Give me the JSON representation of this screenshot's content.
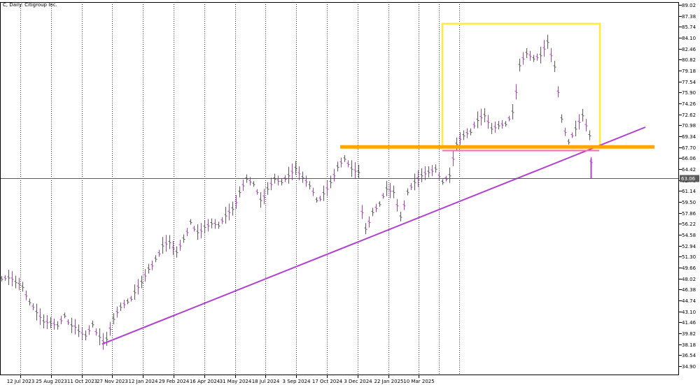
{
  "chart_data": {
    "type": "candlestick",
    "title": "C, Daily: Citigroup Inc.",
    "y_ticks": [
      "89.02",
      "87.38",
      "85.74",
      "84.10",
      "82.46",
      "80.82",
      "79.18",
      "77.54",
      "75.90",
      "74.26",
      "72.62",
      "70.98",
      "69.34",
      "67.70",
      "66.06",
      "64.42",
      "62.78",
      "61.14",
      "59.50",
      "57.86",
      "56.22",
      "54.58",
      "52.94",
      "51.30",
      "49.66",
      "48.02",
      "46.38",
      "44.74",
      "43.10",
      "41.46",
      "39.82",
      "38.18",
      "36.54",
      "34.90"
    ],
    "ylim": [
      34.9,
      89.02
    ],
    "current_price": "63.06",
    "x_ticks": [
      "12 Jul 2023",
      "25 Aug 2023",
      "11 Oct 2023",
      "27 Nov 2023",
      "12 Jan 2024",
      "29 Feb 2024",
      "16 Apr 2024",
      "31 May 2024",
      "18 Jul 2024",
      "3 Sep 2024",
      "17 Oct 2024",
      "3 Dec 2024",
      "22 Jan 2025",
      "10 Mar 2025"
    ],
    "bar_series": [
      {
        "name": "",
        "color": "#5a5a5a",
        "points": [
          [
            2,
            48.0
          ],
          [
            12,
            48.2
          ],
          [
            22,
            47.5
          ],
          [
            32,
            46.8
          ],
          [
            42,
            44.5
          ],
          [
            52,
            43.0
          ],
          [
            62,
            41.6
          ],
          [
            72,
            41.4
          ],
          [
            82,
            41.0
          ],
          [
            92,
            42.5
          ],
          [
            102,
            41.0
          ],
          [
            112,
            40.2
          ],
          [
            122,
            39.5
          ],
          [
            132,
            41.2
          ],
          [
            142,
            39.3
          ],
          [
            152,
            39.0
          ],
          [
            162,
            42.0
          ],
          [
            172,
            43.8
          ],
          [
            182,
            44.6
          ],
          [
            192,
            46.0
          ],
          [
            202,
            47.5
          ],
          [
            212,
            49.5
          ],
          [
            222,
            51.0
          ],
          [
            232,
            53.0
          ],
          [
            242,
            53.5
          ],
          [
            252,
            52.0
          ],
          [
            262,
            54.0
          ],
          [
            272,
            56.5
          ],
          [
            282,
            55.0
          ],
          [
            292,
            55.8
          ],
          [
            302,
            56.3
          ],
          [
            312,
            56.0
          ],
          [
            322,
            57.5
          ],
          [
            332,
            58.5
          ],
          [
            342,
            61.0
          ],
          [
            352,
            63.0
          ],
          [
            362,
            62.2
          ],
          [
            372,
            59.8
          ],
          [
            382,
            61.5
          ],
          [
            392,
            63.0
          ],
          [
            402,
            62.5
          ],
          [
            412,
            63.5
          ],
          [
            422,
            64.6
          ],
          [
            432,
            63.2
          ],
          [
            442,
            62.0
          ],
          [
            452,
            59.8
          ],
          [
            462,
            60.8
          ],
          [
            472,
            62.5
          ],
          [
            482,
            64.8
          ],
          [
            492,
            66.0
          ],
          [
            502,
            64.5
          ],
          [
            512,
            64.0
          ],
          [
            522,
            55.5
          ],
          [
            532,
            58.0
          ],
          [
            542,
            59.2
          ],
          [
            552,
            61.5
          ],
          [
            562,
            61.0
          ],
          [
            572,
            57.3
          ],
          [
            582,
            61.0
          ],
          [
            592,
            62.5
          ],
          [
            602,
            63.5
          ],
          [
            612,
            64.0
          ],
          [
            622,
            64.5
          ],
          [
            632,
            62.5
          ],
          [
            642,
            63.5
          ],
          [
            652,
            68.2
          ],
          [
            662,
            69.5
          ],
          [
            672,
            70.0
          ],
          [
            682,
            71.8
          ],
          [
            692,
            72.5
          ],
          [
            702,
            70.5
          ],
          [
            712,
            71.0
          ],
          [
            722,
            71.2
          ],
          [
            732,
            73.0
          ],
          [
            742,
            80.0
          ],
          [
            752,
            81.8
          ],
          [
            762,
            81.0
          ],
          [
            772,
            81.5
          ],
          [
            782,
            83.5
          ],
          [
            792,
            79.8
          ],
          [
            802,
            72.0
          ],
          [
            812,
            68.5
          ],
          [
            822,
            70.5
          ],
          [
            832,
            72.5
          ],
          [
            842,
            69.5
          ]
        ]
      },
      {
        "name": "",
        "color": "#b040d0",
        "points": [
          [
            7,
            48.1
          ],
          [
            17,
            48.0
          ],
          [
            27,
            47.2
          ],
          [
            37,
            45.5
          ],
          [
            47,
            43.8
          ],
          [
            57,
            42.3
          ],
          [
            67,
            41.5
          ],
          [
            77,
            41.2
          ],
          [
            87,
            41.8
          ],
          [
            97,
            41.5
          ],
          [
            107,
            40.8
          ],
          [
            117,
            39.8
          ],
          [
            127,
            40.3
          ],
          [
            137,
            40.0
          ],
          [
            147,
            38.6
          ],
          [
            157,
            40.5
          ],
          [
            167,
            43.0
          ],
          [
            177,
            44.2
          ],
          [
            187,
            45.0
          ],
          [
            197,
            46.8
          ],
          [
            207,
            48.5
          ],
          [
            217,
            50.0
          ],
          [
            227,
            51.8
          ],
          [
            237,
            53.3
          ],
          [
            247,
            52.6
          ],
          [
            257,
            53.0
          ],
          [
            267,
            55.0
          ],
          [
            277,
            55.5
          ],
          [
            287,
            55.2
          ],
          [
            297,
            56.0
          ],
          [
            307,
            56.2
          ],
          [
            317,
            56.7
          ],
          [
            327,
            58.0
          ],
          [
            337,
            59.5
          ],
          [
            347,
            62.0
          ],
          [
            357,
            62.6
          ],
          [
            367,
            61.0
          ],
          [
            377,
            60.3
          ],
          [
            387,
            62.2
          ],
          [
            397,
            62.7
          ],
          [
            407,
            63.0
          ],
          [
            417,
            64.0
          ],
          [
            427,
            63.8
          ],
          [
            437,
            62.6
          ],
          [
            447,
            61.0
          ],
          [
            457,
            60.0
          ],
          [
            467,
            61.5
          ],
          [
            477,
            63.5
          ],
          [
            487,
            65.4
          ],
          [
            497,
            65.2
          ],
          [
            507,
            64.2
          ],
          [
            517,
            58.0
          ],
          [
            527,
            56.5
          ],
          [
            537,
            58.6
          ],
          [
            547,
            60.4
          ],
          [
            557,
            61.2
          ],
          [
            567,
            59.0
          ],
          [
            577,
            59.0
          ],
          [
            587,
            61.8
          ],
          [
            597,
            63.0
          ],
          [
            607,
            63.8
          ],
          [
            617,
            64.2
          ],
          [
            627,
            63.4
          ],
          [
            637,
            63.0
          ],
          [
            647,
            66.0
          ],
          [
            657,
            69.0
          ],
          [
            667,
            69.8
          ],
          [
            677,
            71.0
          ],
          [
            687,
            72.2
          ],
          [
            697,
            71.5
          ],
          [
            707,
            70.7
          ],
          [
            717,
            71.1
          ],
          [
            727,
            72.0
          ],
          [
            737,
            76.0
          ],
          [
            747,
            81.0
          ],
          [
            757,
            81.4
          ],
          [
            767,
            81.2
          ],
          [
            777,
            82.5
          ],
          [
            787,
            81.5
          ],
          [
            797,
            76.0
          ],
          [
            807,
            70.0
          ],
          [
            817,
            69.5
          ],
          [
            827,
            71.5
          ],
          [
            837,
            71.0
          ],
          [
            844,
            65.5
          ]
        ]
      }
    ],
    "line_series": [
      {
        "name": "",
        "color": "#b040d0",
        "points": [
          [
            146,
            38.2
          ],
          [
            922,
            70.7
          ]
        ]
      },
      {
        "name": "",
        "color": "#ffa500",
        "points": [
          [
            486,
            67.75
          ],
          [
            935,
            67.75
          ]
        ]
      },
      {
        "name": "",
        "color": "#ff69b4",
        "points": [
          [
            632,
            67.2
          ],
          [
            856,
            67.2
          ]
        ]
      }
    ],
    "rect_annotation": {
      "color": "#ffeb3b",
      "y_range": [
        67.7,
        86.2
      ]
    },
    "current_line": {
      "color": "#5a5a5a",
      "value": 63.06
    }
  }
}
